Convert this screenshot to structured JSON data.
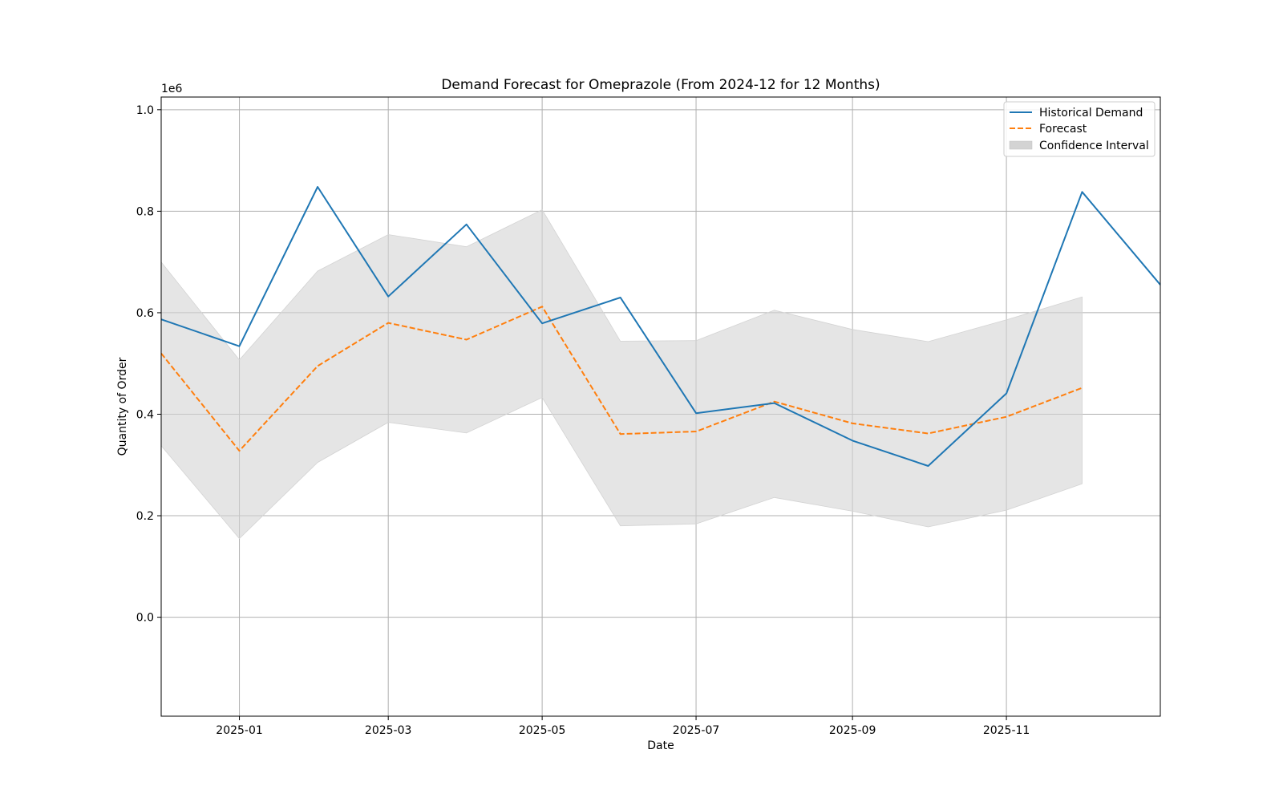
{
  "chart_data": {
    "type": "line",
    "title": "Demand Forecast for Omeprazole (From 2024-12 for 12 Months)",
    "xlabel": "Date",
    "ylabel": "Quantity of Order",
    "y_offset_label": "1e6",
    "xlim": [
      "2024-12-01",
      "2026-01-01"
    ],
    "ylim": [
      -0.195,
      1.025
    ],
    "y_scale_factor": 1000000,
    "x_ticks": [
      "2025-01",
      "2025-03",
      "2025-05",
      "2025-07",
      "2025-09",
      "2025-11"
    ],
    "y_ticks": [
      "0.0",
      "0.2",
      "0.4",
      "0.6",
      "0.8",
      "1.0"
    ],
    "grid": true,
    "legend_position": "top-right",
    "colors": {
      "historical": "#1f77b4",
      "forecast": "#ff7f0e",
      "confidence": "#d3d3d3",
      "grid": "#b0b0b0"
    },
    "legend": [
      {
        "key": "historical",
        "label": "Historical Demand",
        "style": "solid"
      },
      {
        "key": "forecast",
        "label": "Forecast",
        "style": "dashed"
      },
      {
        "key": "confidence",
        "label": "Confidence Interval",
        "style": "fill"
      }
    ],
    "x": [
      "2024-12-01",
      "2025-01-01",
      "2025-02-01",
      "2025-03-01",
      "2025-04-01",
      "2025-05-01",
      "2025-06-01",
      "2025-07-01",
      "2025-08-01",
      "2025-09-01",
      "2025-10-01",
      "2025-11-01",
      "2025-12-01",
      "2026-01-01"
    ],
    "series": [
      {
        "key": "historical",
        "name": "Historical Demand",
        "values": [
          0.587,
          0.534,
          0.848,
          0.632,
          0.774,
          0.579,
          0.63,
          0.402,
          0.422,
          0.348,
          0.298,
          0.441,
          0.838,
          0.655
        ]
      },
      {
        "key": "forecast",
        "name": "Forecast",
        "values": [
          0.52,
          0.328,
          0.495,
          0.58,
          0.547,
          0.612,
          0.361,
          0.366,
          0.425,
          0.382,
          0.362,
          0.395,
          0.452,
          null
        ]
      }
    ],
    "confidence_interval": {
      "name": "Confidence Interval",
      "lower": [
        0.338,
        0.155,
        0.305,
        0.384,
        0.363,
        0.433,
        0.18,
        0.184,
        0.236,
        0.209,
        0.178,
        0.211,
        0.263,
        null
      ],
      "upper": [
        0.7,
        0.507,
        0.682,
        0.754,
        0.73,
        0.803,
        0.544,
        0.545,
        0.605,
        0.567,
        0.543,
        0.586,
        0.631,
        null
      ]
    }
  }
}
